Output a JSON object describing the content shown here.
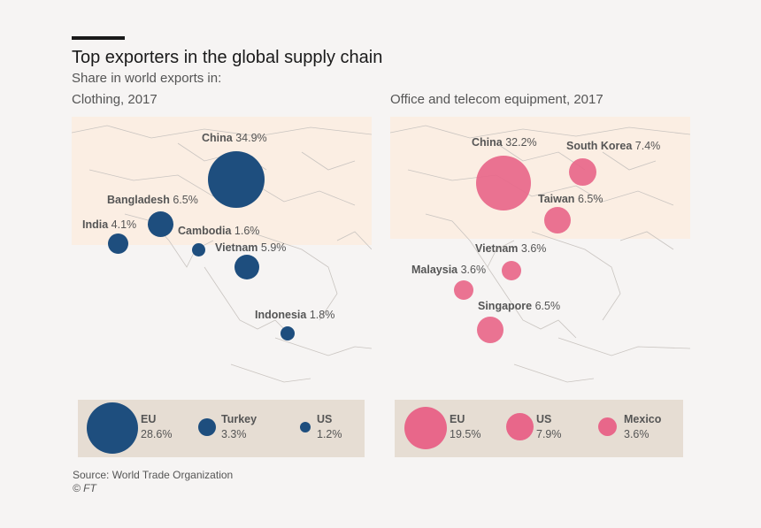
{
  "header": {
    "title": "Top exporters in the global supply chain",
    "subtitle": "Share in world exports in:"
  },
  "colors": {
    "clothing": "#1e4e7e",
    "telecom": "#e8678a",
    "legend_bg": "#e6ddd3",
    "land_highlight": "#fbeee3"
  },
  "panels": [
    {
      "title": "Clothing, 2017",
      "exporters": [
        {
          "name": "China",
          "value": "34.9%"
        },
        {
          "name": "Bangladesh",
          "value": "6.5%"
        },
        {
          "name": "India",
          "value": "4.1%"
        },
        {
          "name": "Cambodia",
          "value": "1.6%"
        },
        {
          "name": "Vietnam",
          "value": "5.9%"
        },
        {
          "name": "Indonesia",
          "value": "1.8%"
        }
      ],
      "legend": [
        {
          "name": "EU",
          "value": "28.6%"
        },
        {
          "name": "Turkey",
          "value": "3.3%"
        },
        {
          "name": "US",
          "value": "1.2%"
        }
      ]
    },
    {
      "title": "Office and telecom equipment, 2017",
      "exporters": [
        {
          "name": "China",
          "value": "32.2%"
        },
        {
          "name": "South Korea",
          "value": "7.4%"
        },
        {
          "name": "Taiwan",
          "value": "6.5%"
        },
        {
          "name": "Vietnam",
          "value": "3.6%"
        },
        {
          "name": "Malaysia",
          "value": "3.6%"
        },
        {
          "name": "Singapore",
          "value": "6.5%"
        }
      ],
      "legend": [
        {
          "name": "EU",
          "value": "19.5%"
        },
        {
          "name": "US",
          "value": "7.9%"
        },
        {
          "name": "Mexico",
          "value": "3.6%"
        }
      ]
    }
  ],
  "footer": {
    "source": "Source: World Trade Organization",
    "credit": "© FT"
  }
}
